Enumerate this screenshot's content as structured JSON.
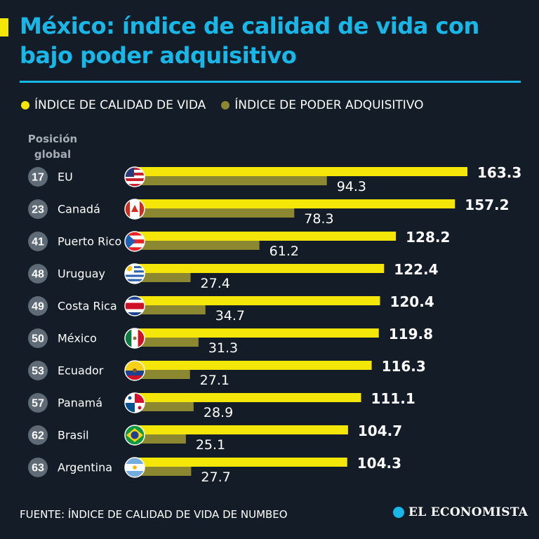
{
  "title": "México: índice de calidad de vida con bajo poder adquisitivo",
  "legend": {
    "quality_label": "ÍNDICE DE CALIDAD DE VIDA",
    "power_label": "ÍNDICE DE PODER ADQUISITIVO"
  },
  "rank_header": "Posición global",
  "source": "FUENTE: ÍNDICE DE CALIDAD DE VIDA DE NUMBEO",
  "brand": "EL ECONOMISTA",
  "colors": {
    "background": "#141d27",
    "title": "#19b6e8",
    "quality_bar": "#f5e60a",
    "power_bar": "#8c8832",
    "rank_badge": "#5e6a75"
  },
  "chart_data": {
    "type": "bar",
    "orientation": "horizontal",
    "categories": [
      "EU",
      "Canadá",
      "Puerto Rico",
      "Uruguay",
      "Costa Rica",
      "México",
      "Ecuador",
      "Panamá",
      "Brasil",
      "Argentina"
    ],
    "ranks": [
      17,
      23,
      41,
      48,
      49,
      50,
      53,
      57,
      62,
      63
    ],
    "flag_icons": [
      "usa-flag-icon",
      "canada-flag-icon",
      "puerto-rico-flag-icon",
      "uruguay-flag-icon",
      "costa-rica-flag-icon",
      "mexico-flag-icon",
      "ecuador-flag-icon",
      "panama-flag-icon",
      "brasil-flag-icon",
      "argentina-flag-icon"
    ],
    "series": [
      {
        "name": "ÍNDICE DE CALIDAD DE VIDA",
        "values": [
          163.3,
          157.2,
          128.2,
          122.4,
          120.4,
          119.8,
          116.3,
          111.1,
          104.7,
          104.3
        ]
      },
      {
        "name": "ÍNDICE DE PODER ADQUISITIVO",
        "values": [
          94.3,
          78.3,
          61.2,
          27.4,
          34.7,
          31.3,
          27.1,
          28.9,
          25.1,
          27.7
        ]
      }
    ],
    "value_labels_quality": [
      "163.3",
      "157.2",
      "128.2",
      "122.4",
      "120.4",
      "119.8",
      "116.3",
      "111.1",
      "104.7",
      "104.3"
    ],
    "value_labels_power": [
      "94.3",
      "78.3",
      "61.2",
      "27.4",
      "34.7",
      "31.3",
      "27.1",
      "28.9",
      "25.1",
      "27.7"
    ],
    "xlim": [
      0,
      170
    ],
    "grid": false,
    "legend_position": "top-left"
  }
}
